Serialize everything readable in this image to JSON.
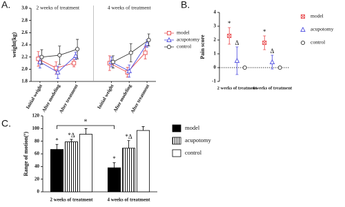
{
  "chart_data": [
    {
      "type": "line",
      "label": "A.",
      "ylabel": "weight(kg)",
      "group_labels": [
        "2 weeks of treatment",
        "4 weeks of treatment"
      ],
      "categories": [
        "Initial weight",
        "After modeling",
        "After treatment",
        null,
        "Initial weight",
        "After modeling",
        "After treatment"
      ],
      "ylim": [
        1.8,
        3.0
      ],
      "yticks": [
        {
          "value": 1.8,
          "label": "1.8"
        },
        {
          "value": 2.0,
          "label": "2.0"
        },
        {
          "value": 2.2,
          "label": "2.2"
        },
        {
          "value": 2.4,
          "label": "2.4"
        },
        {
          "value": 2.6,
          "label": "2.6"
        },
        {
          "value": 2.8,
          "label": "2.8"
        },
        {
          "value": 3.0,
          "label": "3.0"
        }
      ],
      "legend": "right",
      "series": [
        {
          "name": "model",
          "color": "#e8474a",
          "marker": "square",
          "values": [
            2.17,
            2.02,
            2.1,
            null,
            2.1,
            1.95,
            2.27
          ],
          "errors": [
            0.12,
            0.1,
            0.06,
            null,
            0.12,
            0.08,
            0.1
          ]
        },
        {
          "name": "acupotomy",
          "color": "#4a4ae0",
          "marker": "triangle",
          "values": [
            2.12,
            1.95,
            2.22,
            null,
            2.12,
            1.97,
            2.42
          ],
          "errors": [
            0.1,
            0.1,
            0.06,
            null,
            0.08,
            0.1,
            0.06
          ]
        },
        {
          "name": "control",
          "color": "#333333",
          "marker": "circle",
          "values": [
            2.2,
            2.23,
            2.33,
            null,
            2.12,
            2.27,
            2.48
          ],
          "errors": [
            0.12,
            0.15,
            0.16,
            null,
            0.1,
            0.15,
            0.1
          ]
        }
      ]
    },
    {
      "type": "scatter",
      "label": "B.",
      "ylabel": "Pain score",
      "categories": [
        "2 weeks of treatment",
        "4 weeks of treatment"
      ],
      "ylim": [
        -1,
        4
      ],
      "yticks": [
        -1,
        0,
        1,
        2,
        3,
        4
      ],
      "legend": "right",
      "series": [
        {
          "name": "model",
          "color": "#e8474a",
          "marker": "square-x",
          "values": [
            2.3,
            1.8
          ],
          "errors": [
            0.6,
            0.5
          ],
          "annotations": [
            "*",
            "*"
          ]
        },
        {
          "name": "acupotomy",
          "color": "#4a4ae0",
          "marker": "triangle",
          "values": [
            0.5,
            0.4
          ],
          "errors": [
            1.0,
            0.5
          ],
          "annotations": [
            "Δ",
            "Δ"
          ]
        },
        {
          "name": "control",
          "color": "#333333",
          "marker": "circle",
          "values": [
            0,
            0
          ],
          "errors": [
            0,
            0
          ]
        }
      ]
    },
    {
      "type": "bar",
      "label": "C.",
      "ylabel": "Range of motion(º)",
      "categories": [
        "2 weeks of treatment",
        "4 weeks of treatment"
      ],
      "ylim": [
        0,
        120
      ],
      "yticks": [
        0,
        20,
        40,
        60,
        80,
        100,
        120
      ],
      "legend": "right",
      "bracket_label": "*",
      "series": [
        {
          "name": "model",
          "color": "#000000",
          "pattern": "solid",
          "values": [
            67,
            38
          ],
          "errors": [
            8,
            8
          ],
          "annotations": [
            "*",
            "*"
          ]
        },
        {
          "name": "acupotomy",
          "color": "#000000",
          "pattern": "hatch",
          "values": [
            79,
            69
          ],
          "errors": [
            4,
            12
          ],
          "annotations": [
            "*Δ",
            "*Δ"
          ]
        },
        {
          "name": "control",
          "color": "#000000",
          "pattern": "none",
          "values": [
            91,
            97
          ],
          "errors": [
            9,
            6
          ]
        }
      ]
    }
  ]
}
